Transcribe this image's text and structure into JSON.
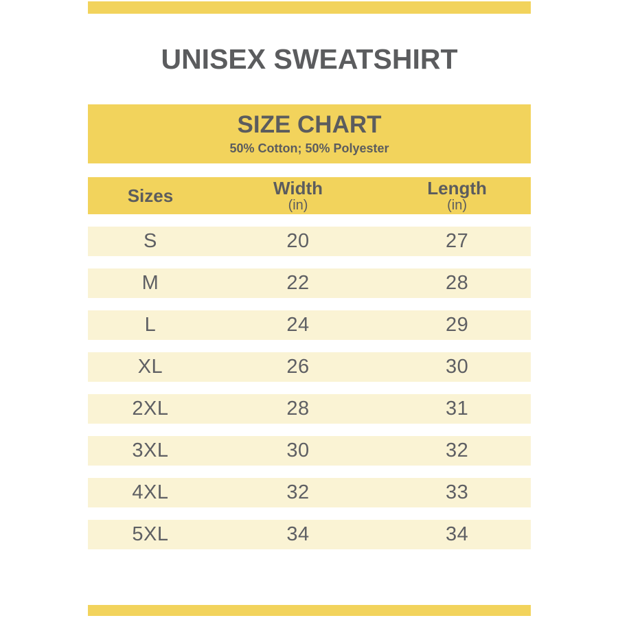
{
  "title": "UNISEX SWEATSHIRT",
  "size_chart": {
    "heading": "SIZE CHART",
    "material": "50% Cotton; 50% Polyester",
    "columns": {
      "sizes": {
        "label": "Sizes",
        "unit": ""
      },
      "width": {
        "label": "Width",
        "unit": "(in)"
      },
      "length": {
        "label": "Length",
        "unit": "(in)"
      }
    },
    "rows": [
      {
        "size": "S",
        "width": "20",
        "length": "27"
      },
      {
        "size": "M",
        "width": "22",
        "length": "28"
      },
      {
        "size": "L",
        "width": "24",
        "length": "29"
      },
      {
        "size": "XL",
        "width": "26",
        "length": "30"
      },
      {
        "size": "2XL",
        "width": "28",
        "length": "31"
      },
      {
        "size": "3XL",
        "width": "30",
        "length": "32"
      },
      {
        "size": "4XL",
        "width": "32",
        "length": "33"
      },
      {
        "size": "5XL",
        "width": "34",
        "length": "34"
      }
    ]
  },
  "colors": {
    "accent_yellow": "#F2D35C",
    "row_cream": "#FAF3D4",
    "heading_text": "#5B5C5E",
    "data_text": "#5E5F63",
    "background": "#FFFFFF"
  },
  "chart_data": {
    "type": "table",
    "page_title": "UNISEX SWEATSHIRT",
    "title": "SIZE CHART",
    "subtitle": "50% Cotton; 50% Polyester",
    "columns": [
      "Sizes",
      "Width (in)",
      "Length (in)"
    ],
    "rows": [
      [
        "S",
        20,
        27
      ],
      [
        "M",
        22,
        28
      ],
      [
        "L",
        24,
        29
      ],
      [
        "XL",
        26,
        30
      ],
      [
        "2XL",
        28,
        31
      ],
      [
        "3XL",
        30,
        32
      ],
      [
        "4XL",
        32,
        33
      ],
      [
        "5XL",
        34,
        34
      ]
    ],
    "layout": "header row highlighted yellow; alternating cream data rows separated by white gaps; yellow accent bars at page top and bottom"
  }
}
